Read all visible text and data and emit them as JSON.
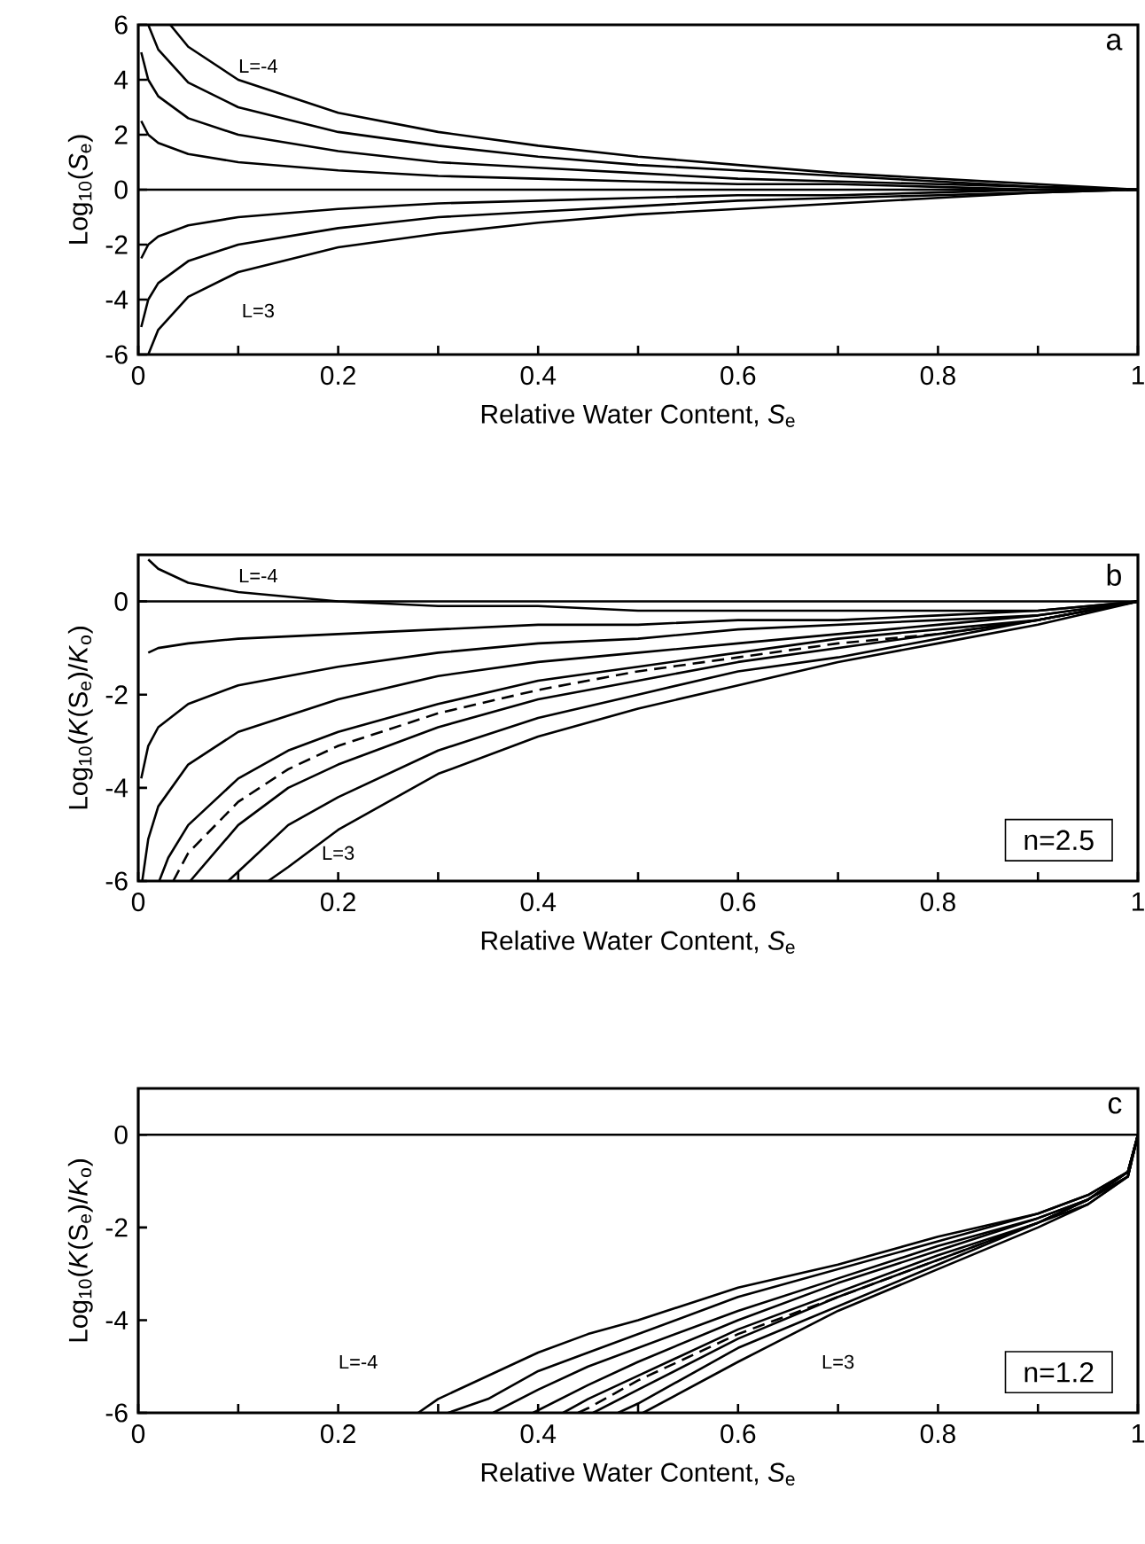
{
  "chart_data": [
    {
      "type": "line",
      "xlabel": "Relative Water Content, *S*$_{e}$",
      "ylabel": "Log$_{10}$(*S*$_{e}$)",
      "xlim": [
        0,
        1
      ],
      "ylim": [
        -6,
        6
      ],
      "xticks": [
        0,
        {
          "value": 0.1,
          "label": null
        },
        0.2,
        {
          "value": 0.3,
          "label": null
        },
        0.4,
        {
          "value": 0.5,
          "label": null
        },
        0.6,
        {
          "value": 0.7,
          "label": null
        },
        0.8,
        {
          "value": 0.9,
          "label": null
        },
        1
      ],
      "yticks": [
        -6,
        -4,
        -2,
        0,
        2,
        4,
        6
      ],
      "annotations": [
        "a",
        "L=-4",
        "L=3"
      ],
      "series": [
        {
          "color": "#000000",
          "x": [
            0.032,
            0.05,
            0.1,
            0.2,
            0.3,
            0.4,
            0.5,
            0.6,
            0.7,
            0.8,
            0.9,
            1
          ],
          "values": [
            6,
            5.2,
            4,
            2.8,
            2.1,
            1.6,
            1.2,
            0.9,
            0.6,
            0.4,
            0.2,
            0
          ]
        },
        {
          "color": "#000000",
          "x": [
            0.01,
            0.02,
            0.05,
            0.1,
            0.2,
            0.3,
            0.4,
            0.5,
            0.6,
            0.7,
            0.8,
            0.9,
            1
          ],
          "values": [
            6,
            5.1,
            3.9,
            3,
            2.1,
            1.6,
            1.2,
            0.9,
            0.7,
            0.5,
            0.3,
            0.1,
            0
          ]
        },
        {
          "color": "#000000",
          "x": [
            0.003,
            0.01,
            0.02,
            0.05,
            0.1,
            0.2,
            0.3,
            0.4,
            0.5,
            0.6,
            0.7,
            0.8,
            0.9,
            1
          ],
          "values": [
            5,
            4,
            3.4,
            2.6,
            2,
            1.4,
            1,
            0.8,
            0.6,
            0.4,
            0.3,
            0.2,
            0.1,
            0
          ]
        },
        {
          "color": "#000000",
          "x": [
            0.003,
            0.01,
            0.02,
            0.05,
            0.1,
            0.2,
            0.3,
            0.4,
            0.5,
            0.6,
            0.7,
            0.8,
            0.9,
            1
          ],
          "values": [
            2.5,
            2,
            1.7,
            1.3,
            1,
            0.7,
            0.5,
            0.4,
            0.3,
            0.2,
            0.2,
            0.1,
            0,
            0
          ]
        },
        {
          "color": "#000000",
          "x": [
            0,
            1
          ],
          "values": [
            0,
            0
          ]
        },
        {
          "color": "#000000",
          "x": [
            0.003,
            0.01,
            0.02,
            0.05,
            0.1,
            0.2,
            0.3,
            0.4,
            0.5,
            0.6,
            0.7,
            0.8,
            0.9,
            1
          ],
          "values": [
            -2.5,
            -2,
            -1.7,
            -1.3,
            -1,
            -0.7,
            -0.5,
            -0.4,
            -0.3,
            -0.2,
            -0.2,
            -0.1,
            0,
            0
          ]
        },
        {
          "color": "#000000",
          "x": [
            0.003,
            0.01,
            0.02,
            0.05,
            0.1,
            0.2,
            0.3,
            0.4,
            0.5,
            0.6,
            0.7,
            0.8,
            0.9,
            1
          ],
          "values": [
            -5,
            -4,
            -3.4,
            -2.6,
            -2,
            -1.4,
            -1,
            -0.8,
            -0.6,
            -0.4,
            -0.3,
            -0.2,
            -0.1,
            0
          ]
        },
        {
          "color": "#000000",
          "x": [
            0.01,
            0.02,
            0.05,
            0.1,
            0.2,
            0.3,
            0.4,
            0.5,
            0.6,
            0.7,
            0.8,
            0.9,
            1
          ],
          "values": [
            -6,
            -5.1,
            -3.9,
            -3,
            -2.1,
            -1.6,
            -1.2,
            -0.9,
            -0.7,
            -0.5,
            -0.3,
            -0.1,
            0
          ]
        }
      ]
    },
    {
      "type": "line",
      "xlabel": "Relative Water Content, *S*$_{e}$",
      "ylabel": "Log$_{10}$(*K*(S$_{e}$)/*K*$_{o}$)",
      "xlim": [
        0,
        1
      ],
      "ylim": [
        -6,
        1
      ],
      "xticks": [
        0,
        {
          "value": 0.1,
          "label": null
        },
        0.2,
        {
          "value": 0.3,
          "label": null
        },
        0.4,
        {
          "value": 0.5,
          "label": null
        },
        0.6,
        {
          "value": 0.7,
          "label": null
        },
        0.8,
        {
          "value": 0.9,
          "label": null
        },
        1
      ],
      "yticks": [
        -6,
        -4,
        -2,
        0
      ],
      "ref_lines": [
        {
          "axis": "y",
          "value": 0
        }
      ],
      "annotations": [
        "b",
        "n=2.5",
        "L=-4",
        "L=3"
      ],
      "series": [
        {
          "color": "#000000",
          "x": [
            0.01,
            0.02,
            0.05,
            0.1,
            0.2,
            0.3,
            0.4,
            0.5,
            0.6,
            0.7,
            0.8,
            0.9,
            1
          ],
          "values": [
            0.9,
            0.7,
            0.4,
            0.2,
            0,
            -0.1,
            -0.1,
            -0.2,
            -0.2,
            -0.2,
            -0.2,
            -0.2,
            0
          ]
        },
        {
          "color": "#000000",
          "x": [
            0.01,
            0.02,
            0.05,
            0.1,
            0.2,
            0.3,
            0.4,
            0.5,
            0.6,
            0.7,
            0.8,
            0.9,
            1
          ],
          "values": [
            -1.1,
            -1,
            -0.9,
            -0.8,
            -0.7,
            -0.6,
            -0.5,
            -0.5,
            -0.4,
            -0.4,
            -0.3,
            -0.2,
            0
          ]
        },
        {
          "color": "#000000",
          "x": [
            0.003,
            0.01,
            0.02,
            0.05,
            0.1,
            0.2,
            0.3,
            0.4,
            0.5,
            0.6,
            0.7,
            0.8,
            0.9,
            1
          ],
          "values": [
            -3.8,
            -3.1,
            -2.7,
            -2.2,
            -1.8,
            -1.4,
            -1.1,
            -0.9,
            -0.8,
            -0.6,
            -0.5,
            -0.4,
            -0.3,
            0
          ]
        },
        {
          "color": "#000000",
          "x": [
            0.004,
            0.01,
            0.02,
            0.05,
            0.1,
            0.2,
            0.3,
            0.4,
            0.5,
            0.6,
            0.7,
            0.8,
            0.9,
            1
          ],
          "values": [
            -6,
            -5.1,
            -4.4,
            -3.5,
            -2.8,
            -2.1,
            -1.6,
            -1.3,
            -1.1,
            -0.9,
            -0.7,
            -0.5,
            -0.3,
            0
          ]
        },
        {
          "color": "#000000",
          "x": [
            0.021,
            0.03,
            0.05,
            0.1,
            0.15,
            0.2,
            0.3,
            0.4,
            0.5,
            0.6,
            0.7,
            0.8,
            0.9,
            1
          ],
          "values": [
            -6,
            -5.5,
            -4.8,
            -3.8,
            -3.2,
            -2.8,
            -2.2,
            -1.7,
            -1.4,
            -1.1,
            -0.8,
            -0.6,
            -0.4,
            0
          ]
        },
        {
          "color": "#000000",
          "line_style": "dashed",
          "x": [
            0.035,
            0.05,
            0.1,
            0.15,
            0.2,
            0.3,
            0.4,
            0.5,
            0.6,
            0.7,
            0.8,
            0.9,
            1
          ],
          "values": [
            -6,
            -5.4,
            -4.3,
            -3.6,
            -3.1,
            -2.4,
            -1.9,
            -1.5,
            -1.2,
            -0.9,
            -0.7,
            -0.4,
            0
          ]
        },
        {
          "color": "#000000",
          "x": [
            0.052,
            0.1,
            0.15,
            0.2,
            0.3,
            0.4,
            0.5,
            0.6,
            0.7,
            0.8,
            0.9,
            1
          ],
          "values": [
            -6,
            -4.8,
            -4,
            -3.5,
            -2.7,
            -2.1,
            -1.7,
            -1.3,
            -1,
            -0.7,
            -0.4,
            0
          ]
        },
        {
          "color": "#000000",
          "x": [
            0.09,
            0.1,
            0.15,
            0.2,
            0.3,
            0.4,
            0.5,
            0.6,
            0.7,
            0.8,
            0.9,
            1
          ],
          "values": [
            -6,
            -5.8,
            -4.8,
            -4.2,
            -3.2,
            -2.5,
            -2,
            -1.5,
            -1.2,
            -0.8,
            -0.4,
            0
          ]
        },
        {
          "color": "#000000",
          "x": [
            0.13,
            0.15,
            0.2,
            0.3,
            0.4,
            0.5,
            0.6,
            0.7,
            0.8,
            0.9,
            1
          ],
          "values": [
            -6,
            -5.7,
            -4.9,
            -3.7,
            -2.9,
            -2.3,
            -1.8,
            -1.3,
            -0.9,
            -0.5,
            0
          ]
        }
      ]
    },
    {
      "type": "line",
      "xlabel": "Relative Water Content, *S*$_{e}$",
      "ylabel": "Log$_{10}$(*K*(S$_{e}$)/*K*$_{o}$)",
      "xlim": [
        0,
        1
      ],
      "ylim": [
        -6,
        1
      ],
      "xticks": [
        0,
        {
          "value": 0.1,
          "label": null
        },
        0.2,
        {
          "value": 0.3,
          "label": null
        },
        0.4,
        {
          "value": 0.5,
          "label": null
        },
        0.6,
        {
          "value": 0.7,
          "label": null
        },
        0.8,
        {
          "value": 0.9,
          "label": null
        },
        1
      ],
      "yticks": [
        -6,
        -4,
        -2,
        0
      ],
      "ref_lines": [
        {
          "axis": "y",
          "value": 0
        }
      ],
      "annotations": [
        "c",
        "n=1.2",
        "L=-4",
        "L=3"
      ],
      "series": [
        {
          "color": "#000000",
          "x": [
            0.28,
            0.3,
            0.35,
            0.4,
            0.45,
            0.5,
            0.6,
            0.7,
            0.8,
            0.9,
            0.95,
            0.99,
            1
          ],
          "values": [
            -6,
            -5.7,
            -5.2,
            -4.7,
            -4.3,
            -4,
            -3.3,
            -2.8,
            -2.2,
            -1.7,
            -1.3,
            -0.8,
            0
          ]
        },
        {
          "color": "#000000",
          "x": [
            0.31,
            0.35,
            0.4,
            0.45,
            0.5,
            0.6,
            0.7,
            0.8,
            0.9,
            0.95,
            0.99,
            1
          ],
          "values": [
            -6,
            -5.7,
            -5.1,
            -4.7,
            -4.3,
            -3.5,
            -2.9,
            -2.3,
            -1.7,
            -1.3,
            -0.8,
            0
          ]
        },
        {
          "color": "#000000",
          "x": [
            0.355,
            0.4,
            0.45,
            0.5,
            0.6,
            0.7,
            0.8,
            0.9,
            0.95,
            0.99,
            1
          ],
          "values": [
            -6,
            -5.5,
            -5,
            -4.6,
            -3.8,
            -3.1,
            -2.4,
            -1.8,
            -1.4,
            -0.8,
            0
          ]
        },
        {
          "color": "#000000",
          "x": [
            0.395,
            0.45,
            0.5,
            0.6,
            0.7,
            0.8,
            0.9,
            0.95,
            0.99,
            1
          ],
          "values": [
            -6,
            -5.4,
            -4.9,
            -4,
            -3.2,
            -2.5,
            -1.8,
            -1.4,
            -0.8,
            0
          ]
        },
        {
          "color": "#000000",
          "x": [
            0.425,
            0.45,
            0.5,
            0.6,
            0.7,
            0.8,
            0.9,
            0.95,
            0.99,
            1
          ],
          "values": [
            -6,
            -5.7,
            -5.2,
            -4.2,
            -3.4,
            -2.6,
            -1.9,
            -1.4,
            -0.8,
            0
          ]
        },
        {
          "color": "#000000",
          "line_style": "dashed",
          "x": [
            0.44,
            0.45,
            0.5,
            0.6,
            0.7,
            0.8,
            0.9,
            0.95,
            0.99,
            1
          ],
          "values": [
            -6,
            -5.9,
            -5.3,
            -4.3,
            -3.5,
            -2.7,
            -1.9,
            -1.4,
            -0.9,
            0
          ]
        },
        {
          "color": "#000000",
          "x": [
            0.455,
            0.5,
            0.6,
            0.7,
            0.8,
            0.9,
            0.95,
            0.99,
            1
          ],
          "values": [
            -6,
            -5.5,
            -4.4,
            -3.5,
            -2.7,
            -1.9,
            -1.4,
            -0.9,
            0
          ]
        },
        {
          "color": "#000000",
          "x": [
            0.48,
            0.5,
            0.6,
            0.7,
            0.8,
            0.9,
            0.95,
            0.99,
            1
          ],
          "values": [
            -6,
            -5.8,
            -4.6,
            -3.7,
            -2.8,
            -1.9,
            -1.5,
            -0.9,
            0
          ]
        },
        {
          "color": "#000000",
          "x": [
            0.505,
            0.6,
            0.7,
            0.8,
            0.9,
            0.95,
            0.99,
            1
          ],
          "values": [
            -6,
            -4.9,
            -3.8,
            -2.9,
            -2,
            -1.5,
            -0.9,
            0
          ]
        }
      ]
    }
  ]
}
